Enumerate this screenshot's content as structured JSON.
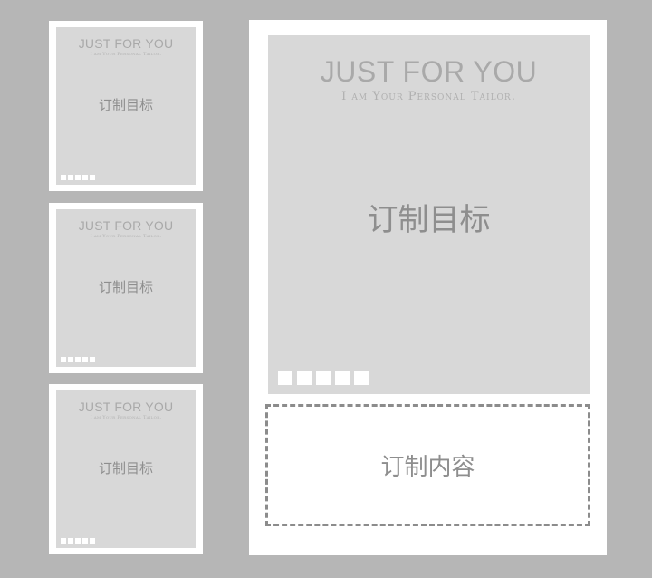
{
  "thumbnails": [
    {
      "brand": "JUST FOR YOU",
      "tagline": "I am Your Personal Tailor.",
      "goal": "订制目标"
    },
    {
      "brand": "JUST FOR YOU",
      "tagline": "I am Your Personal Tailor.",
      "goal": "订制目标"
    },
    {
      "brand": "JUST FOR YOU",
      "tagline": "I am Your Personal Tailor.",
      "goal": "订制目标"
    }
  ],
  "main": {
    "brand": "JUST FOR YOU",
    "tagline": "I am Your Personal Tailor.",
    "goal": "订制目标"
  },
  "content_area": {
    "label": "订制内容"
  },
  "colors": {
    "background": "#b6b6b6",
    "card": "#ffffff",
    "panel": "#d8d8d8",
    "text": "#8e8e8e",
    "dashed_border": "#8c8c8c"
  }
}
